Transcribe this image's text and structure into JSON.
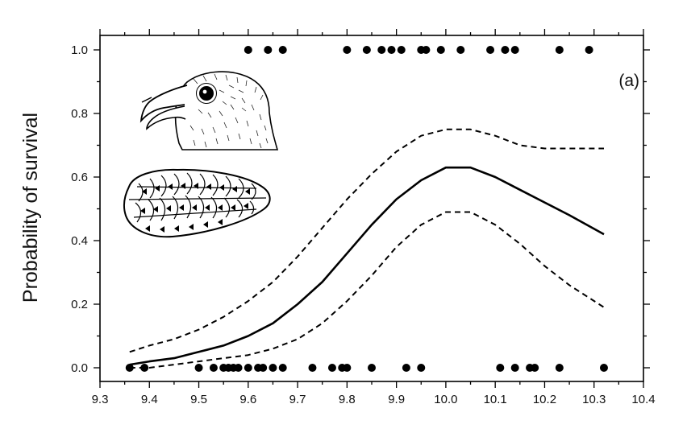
{
  "chart_data": {
    "type": "scatter",
    "title": "",
    "panel_label": "(a)",
    "xlabel": "",
    "ylabel": "Probability of survival",
    "xlim": [
      9.3,
      10.4
    ],
    "ylim": [
      0.0,
      1.0
    ],
    "x_ticks": [
      "9.3",
      "9.4",
      "9.5",
      "9.6",
      "9.7",
      "9.8",
      "9.9",
      "10.0",
      "10.1",
      "10.2",
      "10.3",
      "10.4"
    ],
    "y_ticks": [
      "0.0",
      "0.2",
      "0.4",
      "0.6",
      "0.8",
      "1.0"
    ],
    "grid": false,
    "series": [
      {
        "role": "observed survived",
        "y": 1.0,
        "x": [
          9.6,
          9.64,
          9.67,
          9.8,
          9.84,
          9.87,
          9.89,
          9.91,
          9.95,
          9.96,
          9.99,
          10.03,
          10.09,
          10.12,
          10.14,
          10.23,
          10.29
        ]
      },
      {
        "role": "observed died",
        "y": 0.0,
        "x": [
          9.36,
          9.39,
          9.5,
          9.53,
          9.55,
          9.56,
          9.57,
          9.58,
          9.6,
          9.62,
          9.63,
          9.65,
          9.67,
          9.73,
          9.77,
          9.79,
          9.8,
          9.85,
          9.92,
          9.95,
          10.11,
          10.14,
          10.17,
          10.18,
          10.23,
          10.32
        ]
      },
      {
        "role": "fitted curve",
        "style": "solid",
        "x": [
          9.36,
          9.4,
          9.45,
          9.5,
          9.55,
          9.6,
          9.65,
          9.7,
          9.75,
          9.8,
          9.85,
          9.9,
          9.95,
          10.0,
          10.05,
          10.1,
          10.15,
          10.2,
          10.25,
          10.32
        ],
        "y": [
          0.01,
          0.02,
          0.03,
          0.05,
          0.07,
          0.1,
          0.14,
          0.2,
          0.27,
          0.36,
          0.45,
          0.53,
          0.59,
          0.63,
          0.63,
          0.6,
          0.56,
          0.52,
          0.48,
          0.42
        ]
      },
      {
        "role": "upper confidence limit",
        "style": "dashed",
        "x": [
          9.36,
          9.4,
          9.45,
          9.5,
          9.55,
          9.6,
          9.65,
          9.7,
          9.75,
          9.8,
          9.85,
          9.9,
          9.95,
          10.0,
          10.05,
          10.1,
          10.15,
          10.2,
          10.25,
          10.32
        ],
        "y": [
          0.05,
          0.07,
          0.09,
          0.12,
          0.16,
          0.21,
          0.27,
          0.35,
          0.44,
          0.53,
          0.61,
          0.68,
          0.73,
          0.75,
          0.75,
          0.73,
          0.7,
          0.69,
          0.69,
          0.69
        ]
      },
      {
        "role": "lower confidence limit",
        "style": "dashed",
        "x": [
          9.36,
          9.4,
          9.45,
          9.5,
          9.55,
          9.6,
          9.65,
          9.7,
          9.75,
          9.8,
          9.85,
          9.9,
          9.95,
          10.0,
          10.05,
          10.1,
          10.15,
          10.2,
          10.25,
          10.32
        ],
        "y": [
          0.0,
          0.0,
          0.01,
          0.02,
          0.03,
          0.04,
          0.06,
          0.09,
          0.14,
          0.21,
          0.29,
          0.38,
          0.45,
          0.49,
          0.49,
          0.45,
          0.39,
          0.32,
          0.26,
          0.19
        ]
      }
    ],
    "colors": {
      "ink": "#000000",
      "background": "#ffffff"
    },
    "illustrations": [
      "crossbill-head-illustration",
      "pine-cone-illustration"
    ]
  }
}
